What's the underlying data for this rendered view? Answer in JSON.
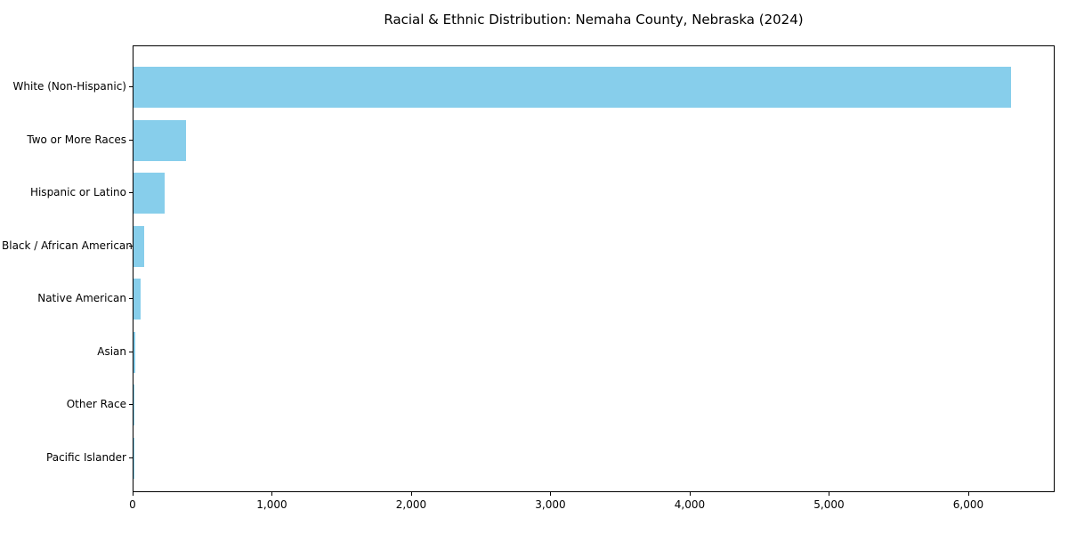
{
  "chart_data": {
    "type": "bar",
    "orientation": "horizontal",
    "title": "Racial & Ethnic Distribution: Nemaha County, Nebraska (2024)",
    "categories": [
      "White (Non-Hispanic)",
      "Two or More Races",
      "Hispanic or Latino",
      "Black / African American",
      "Native American",
      "Asian",
      "Other Race",
      "Pacific Islander"
    ],
    "values": [
      6300,
      375,
      225,
      77,
      51,
      10,
      3,
      1
    ],
    "xlabel": "",
    "ylabel": "",
    "xlim": [
      0,
      6620
    ],
    "xticks": [
      0,
      1000,
      2000,
      3000,
      4000,
      5000,
      6000
    ],
    "xtick_labels": [
      "0",
      "1,000",
      "2,000",
      "3,000",
      "4,000",
      "5,000",
      "6,000"
    ],
    "bar_color": "#87CEEB",
    "grid": false,
    "legend": null,
    "background_color": "#ffffff",
    "spine_color": "#000000"
  }
}
